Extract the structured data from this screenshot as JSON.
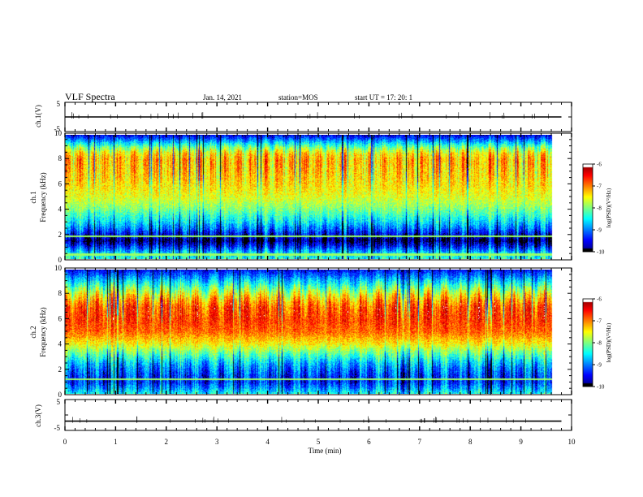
{
  "header": {
    "title": "VLF Spectra",
    "date": "Jan. 14, 2021",
    "station": "station=MOS",
    "start": "start  UT  =   17: 20: 1"
  },
  "chart_data": [
    {
      "type": "line",
      "name": "ch1-voltage",
      "ylabel": "ch.1(V)",
      "ylim": [
        -5,
        5
      ],
      "yticks": [
        "5",
        "-5"
      ],
      "xlim": [
        0,
        10
      ],
      "trace_level": 0,
      "trace_end": 9.8,
      "trace_color": "#000000"
    },
    {
      "type": "heatmap",
      "name": "ch1-spectrogram",
      "ylabel": "ch.1\nFrequency (kHz)",
      "xlim": [
        0,
        10
      ],
      "ylim": [
        0,
        10
      ],
      "data_end": 9.8,
      "yticks": [
        "0",
        "2",
        "4",
        "6",
        "8",
        "10"
      ],
      "colorbar": {
        "label": "log(PSD)(V²/Hz)",
        "range": [
          -10,
          -6
        ],
        "ticks": [
          "-6",
          "-7",
          "-8",
          "-9",
          "-10"
        ]
      },
      "spectral_profile": {
        "freq_khz": [
          0,
          0.5,
          1,
          1.5,
          2,
          2.5,
          3,
          4,
          5,
          6,
          7,
          8,
          8.5,
          9,
          9.5,
          10
        ],
        "log_psd": [
          -8.3,
          -8.6,
          -9.3,
          -9.9,
          -9.5,
          -9.0,
          -8.6,
          -8.0,
          -7.6,
          -7.4,
          -7.3,
          -7.2,
          -7.4,
          -8.0,
          -8.8,
          -9.6
        ]
      },
      "horizontal_lines_khz": [
        0.4,
        1.85
      ],
      "vertical_band_period_min": 0.12
    },
    {
      "type": "heatmap",
      "name": "ch2-spectrogram",
      "ylabel": "ch.2\nFrequency (kHz)",
      "xlim": [
        0,
        10
      ],
      "ylim": [
        0,
        10
      ],
      "data_end": 9.8,
      "yticks": [
        "0",
        "2",
        "4",
        "6",
        "8",
        "10"
      ],
      "colorbar": {
        "label": "log(PSD)(V²/Hz)",
        "range": [
          -10,
          -6
        ],
        "ticks": [
          "-6",
          "-7",
          "-8",
          "-9",
          "-10"
        ]
      },
      "spectral_profile": {
        "freq_khz": [
          0,
          0.5,
          1,
          1.5,
          2,
          2.5,
          3,
          3.5,
          4,
          5,
          6,
          7,
          7.5,
          8,
          8.5,
          9,
          9.5,
          10
        ],
        "log_psd": [
          -8.4,
          -8.9,
          -9.3,
          -9.2,
          -9.0,
          -8.7,
          -8.3,
          -7.9,
          -7.5,
          -6.9,
          -6.7,
          -6.8,
          -7.1,
          -7.5,
          -8.0,
          -8.5,
          -9.0,
          -9.5
        ]
      },
      "horizontal_lines_khz": [
        1.2
      ],
      "vertical_band_period_min": 0.15
    },
    {
      "type": "line",
      "name": "ch3-voltage",
      "ylabel": "ch.3(V)",
      "ylim": [
        -5,
        5
      ],
      "yticks": [
        "5",
        "-5"
      ],
      "xlim": [
        0,
        10
      ],
      "xlabel": "Time (min)",
      "xticks": [
        "0",
        "1",
        "2",
        "3",
        "4",
        "5",
        "6",
        "7",
        "8",
        "9",
        "10"
      ],
      "trace_level": -2,
      "trace_end": 9.8,
      "trace_color": "#000000"
    }
  ]
}
